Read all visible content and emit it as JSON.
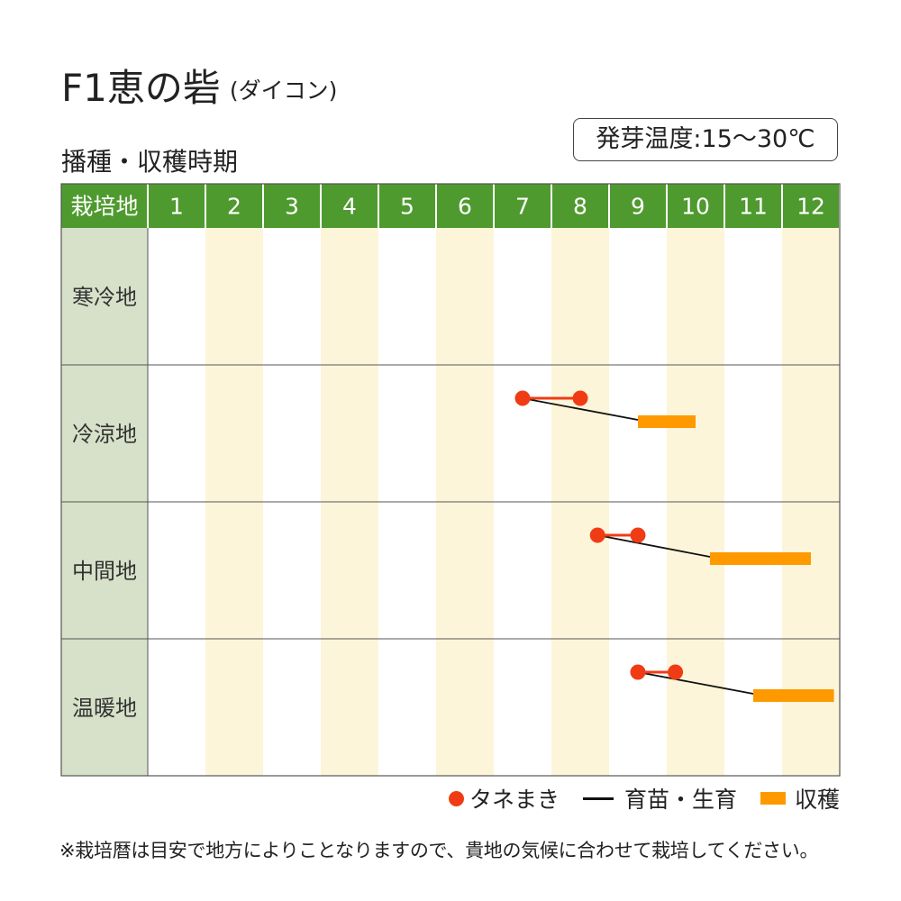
{
  "title": "F1恵の砦",
  "title_sub": "(ダイコン)",
  "subtitle": "播種・収穫時期",
  "germination_temp": "発芽温度:15〜30℃",
  "note": "※栽培暦は目安で地方によりことなりますので、貴地の気候に合わせて栽培してください。",
  "legend": {
    "sowing": "タネまき",
    "growing": "育苗・生育",
    "harvest": "収穫"
  },
  "colors": {
    "header_green": "#4e9a2e",
    "row_label_bg": "#d7e0c8",
    "stripe_cream": "#fdf5d9",
    "sowing_red": "#f03c14",
    "harvest_orange": "#ff9900",
    "growth_line": "#111111"
  },
  "chart_data": {
    "type": "gantt",
    "header_label": "栽培地",
    "months": [
      "1",
      "2",
      "3",
      "4",
      "5",
      "6",
      "7",
      "8",
      "9",
      "10",
      "11",
      "12"
    ],
    "regions": [
      {
        "name": "寒冷地",
        "sowing": null,
        "harvest": null
      },
      {
        "name": "冷涼地",
        "sowing": [
          7.5,
          8.5
        ],
        "harvest": [
          9.5,
          10.5
        ]
      },
      {
        "name": "中間地",
        "sowing": [
          8.8,
          9.5
        ],
        "harvest": [
          10.75,
          12.5
        ]
      },
      {
        "name": "温暖地",
        "sowing": [
          9.5,
          10.15
        ],
        "harvest": [
          11.5,
          12.9
        ]
      }
    ]
  }
}
